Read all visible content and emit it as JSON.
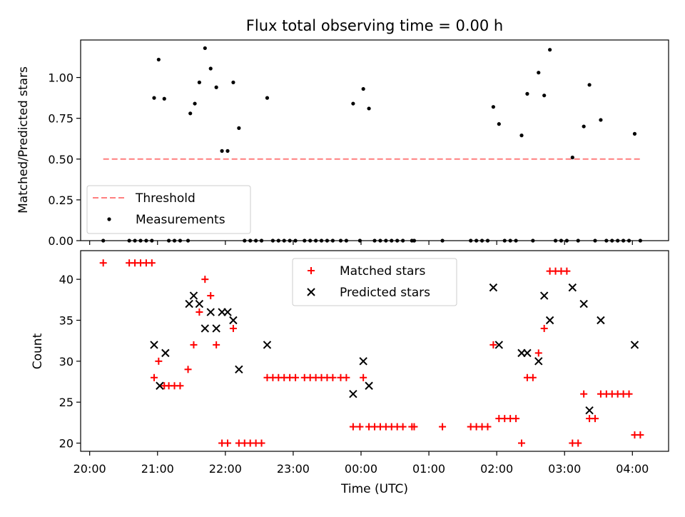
{
  "chart_data": [
    {
      "type": "scatter",
      "title": "Flux total observing time = 0.00 h",
      "xlabel": "",
      "ylabel": "Matched/Predicted stars",
      "ylim": [
        0.0,
        1.23
      ],
      "yticks": [
        "0.00",
        "0.25",
        "0.50",
        "0.75",
        "1.00"
      ],
      "xlim": [
        "19:52",
        "04:32"
      ],
      "legend_position": "lower-left",
      "series": [
        {
          "name": "Threshold",
          "style": "dashed-line",
          "color": "#ff7f7f",
          "x": [
            "20:12",
            "04:08"
          ],
          "y": [
            0.5,
            0.5
          ]
        },
        {
          "name": "Measurements",
          "style": "point",
          "color": "#000000",
          "points": [
            [
              "20:12",
              0.0
            ],
            [
              "20:35",
              0.0
            ],
            [
              "20:40",
              0.0
            ],
            [
              "20:45",
              0.0
            ],
            [
              "20:50",
              0.0
            ],
            [
              "20:55",
              0.0
            ],
            [
              "20:57",
              0.875
            ],
            [
              "21:01",
              1.11
            ],
            [
              "21:06",
              0.87
            ],
            [
              "21:10",
              0.0
            ],
            [
              "21:15",
              0.0
            ],
            [
              "21:20",
              0.0
            ],
            [
              "21:27",
              0.0
            ],
            [
              "21:29",
              0.78
            ],
            [
              "21:33",
              0.84
            ],
            [
              "21:37",
              0.97
            ],
            [
              "21:42",
              1.18
            ],
            [
              "21:47",
              1.055
            ],
            [
              "21:52",
              0.94
            ],
            [
              "21:57",
              0.55
            ],
            [
              "22:02",
              0.55
            ],
            [
              "22:07",
              0.97
            ],
            [
              "22:12",
              0.69
            ],
            [
              "22:17",
              0.0
            ],
            [
              "22:22",
              0.0
            ],
            [
              "22:27",
              0.0
            ],
            [
              "22:32",
              0.0
            ],
            [
              "22:37",
              0.875
            ],
            [
              "22:42",
              0.0
            ],
            [
              "22:47",
              0.0
            ],
            [
              "22:52",
              0.0
            ],
            [
              "22:57",
              0.0
            ],
            [
              "23:02",
              0.0
            ],
            [
              "23:10",
              0.0
            ],
            [
              "23:15",
              0.0
            ],
            [
              "23:20",
              0.0
            ],
            [
              "23:25",
              0.0
            ],
            [
              "23:30",
              0.0
            ],
            [
              "23:35",
              0.0
            ],
            [
              "23:42",
              0.0
            ],
            [
              "23:47",
              0.0
            ],
            [
              "23:53",
              0.84
            ],
            [
              "23:59",
              0.0
            ],
            [
              "00:02",
              0.93
            ],
            [
              "00:07",
              0.81
            ],
            [
              "00:12",
              0.0
            ],
            [
              "00:17",
              0.0
            ],
            [
              "00:22",
              0.0
            ],
            [
              "00:27",
              0.0
            ],
            [
              "00:32",
              0.0
            ],
            [
              "00:37",
              0.0
            ],
            [
              "00:45",
              0.0
            ],
            [
              "00:47",
              0.0
            ],
            [
              "01:12",
              0.0
            ],
            [
              "01:37",
              0.0
            ],
            [
              "01:42",
              0.0
            ],
            [
              "01:47",
              0.0
            ],
            [
              "01:52",
              0.0
            ],
            [
              "01:57",
              0.82
            ],
            [
              "02:02",
              0.715
            ],
            [
              "02:07",
              0.0
            ],
            [
              "02:12",
              0.0
            ],
            [
              "02:17",
              0.0
            ],
            [
              "02:22",
              0.645
            ],
            [
              "02:27",
              0.9
            ],
            [
              "02:32",
              0.0
            ],
            [
              "02:37",
              1.03
            ],
            [
              "02:42",
              0.89
            ],
            [
              "02:47",
              1.17
            ],
            [
              "02:52",
              0.0
            ],
            [
              "02:57",
              0.0
            ],
            [
              "03:02",
              0.0
            ],
            [
              "03:07",
              0.51
            ],
            [
              "03:12",
              0.0
            ],
            [
              "03:17",
              0.7
            ],
            [
              "03:22",
              0.955
            ],
            [
              "03:27",
              0.0
            ],
            [
              "03:32",
              0.74
            ],
            [
              "03:37",
              0.0
            ],
            [
              "03:42",
              0.0
            ],
            [
              "03:47",
              0.0
            ],
            [
              "03:52",
              0.0
            ],
            [
              "03:57",
              0.0
            ],
            [
              "04:02",
              0.655
            ],
            [
              "04:07",
              0.0
            ]
          ]
        }
      ]
    },
    {
      "type": "scatter",
      "title": "",
      "xlabel": "Time (UTC)",
      "ylabel": "Count",
      "ylim": [
        19.0,
        43.5
      ],
      "yticks": [
        "20",
        "25",
        "30",
        "35",
        "40"
      ],
      "xlim": [
        "19:52",
        "04:32"
      ],
      "xticks": [
        "20:00",
        "21:00",
        "22:00",
        "23:00",
        "00:00",
        "01:00",
        "02:00",
        "03:00",
        "04:00"
      ],
      "legend_position": "top-center",
      "series": [
        {
          "name": "Matched stars",
          "style": "plus",
          "color": "#ff0000",
          "points": [
            [
              "20:12",
              42
            ],
            [
              "20:35",
              42
            ],
            [
              "20:40",
              42
            ],
            [
              "20:45",
              42
            ],
            [
              "20:50",
              42
            ],
            [
              "20:55",
              42
            ],
            [
              "20:57",
              28
            ],
            [
              "21:01",
              30
            ],
            [
              "21:06",
              27
            ],
            [
              "21:10",
              27
            ],
            [
              "21:15",
              27
            ],
            [
              "21:20",
              27
            ],
            [
              "21:27",
              29
            ],
            [
              "21:32",
              32
            ],
            [
              "21:37",
              36
            ],
            [
              "21:42",
              40
            ],
            [
              "21:47",
              38
            ],
            [
              "21:52",
              32
            ],
            [
              "21:57",
              20
            ],
            [
              "22:02",
              20
            ],
            [
              "22:07",
              34
            ],
            [
              "22:12",
              20
            ],
            [
              "22:17",
              20
            ],
            [
              "22:22",
              20
            ],
            [
              "22:27",
              20
            ],
            [
              "22:32",
              20
            ],
            [
              "22:37",
              28
            ],
            [
              "22:42",
              28
            ],
            [
              "22:47",
              28
            ],
            [
              "22:52",
              28
            ],
            [
              "22:57",
              28
            ],
            [
              "23:02",
              28
            ],
            [
              "23:10",
              28
            ],
            [
              "23:15",
              28
            ],
            [
              "23:20",
              28
            ],
            [
              "23:25",
              28
            ],
            [
              "23:30",
              28
            ],
            [
              "23:35",
              28
            ],
            [
              "23:42",
              28
            ],
            [
              "23:47",
              28
            ],
            [
              "23:53",
              22
            ],
            [
              "23:59",
              22
            ],
            [
              "00:02",
              28
            ],
            [
              "00:07",
              22
            ],
            [
              "00:12",
              22
            ],
            [
              "00:17",
              22
            ],
            [
              "00:22",
              22
            ],
            [
              "00:27",
              22
            ],
            [
              "00:32",
              22
            ],
            [
              "00:37",
              22
            ],
            [
              "00:45",
              22
            ],
            [
              "00:47",
              22
            ],
            [
              "01:12",
              22
            ],
            [
              "01:37",
              22
            ],
            [
              "01:42",
              22
            ],
            [
              "01:47",
              22
            ],
            [
              "01:52",
              22
            ],
            [
              "01:57",
              32
            ],
            [
              "02:02",
              23
            ],
            [
              "02:07",
              23
            ],
            [
              "02:12",
              23
            ],
            [
              "02:17",
              23
            ],
            [
              "02:22",
              20
            ],
            [
              "02:27",
              28
            ],
            [
              "02:32",
              28
            ],
            [
              "02:37",
              31
            ],
            [
              "02:42",
              34
            ],
            [
              "02:47",
              41
            ],
            [
              "02:52",
              41
            ],
            [
              "02:57",
              41
            ],
            [
              "03:02",
              41
            ],
            [
              "03:07",
              20
            ],
            [
              "03:12",
              20
            ],
            [
              "03:17",
              26
            ],
            [
              "03:22",
              23
            ],
            [
              "03:27",
              23
            ],
            [
              "03:32",
              26
            ],
            [
              "03:37",
              26
            ],
            [
              "03:42",
              26
            ],
            [
              "03:47",
              26
            ],
            [
              "03:52",
              26
            ],
            [
              "03:57",
              26
            ],
            [
              "04:02",
              21
            ],
            [
              "04:07",
              21
            ]
          ]
        },
        {
          "name": "Predicted stars",
          "style": "x",
          "color": "#000000",
          "points": [
            [
              "20:57",
              32
            ],
            [
              "21:02",
              27
            ],
            [
              "21:07",
              31
            ],
            [
              "21:28",
              37
            ],
            [
              "21:32",
              38
            ],
            [
              "21:37",
              37
            ],
            [
              "21:42",
              34
            ],
            [
              "21:47",
              36
            ],
            [
              "21:52",
              34
            ],
            [
              "21:57",
              36
            ],
            [
              "22:02",
              36
            ],
            [
              "22:07",
              35
            ],
            [
              "22:12",
              29
            ],
            [
              "22:37",
              32
            ],
            [
              "23:53",
              26
            ],
            [
              "00:02",
              30
            ],
            [
              "00:07",
              27
            ],
            [
              "01:57",
              39
            ],
            [
              "02:02",
              32
            ],
            [
              "02:22",
              31
            ],
            [
              "02:27",
              31
            ],
            [
              "02:37",
              30
            ],
            [
              "02:42",
              38
            ],
            [
              "02:47",
              35
            ],
            [
              "03:07",
              39
            ],
            [
              "03:17",
              37
            ],
            [
              "03:22",
              24
            ],
            [
              "03:32",
              35
            ],
            [
              "04:02",
              32
            ]
          ]
        }
      ]
    }
  ]
}
